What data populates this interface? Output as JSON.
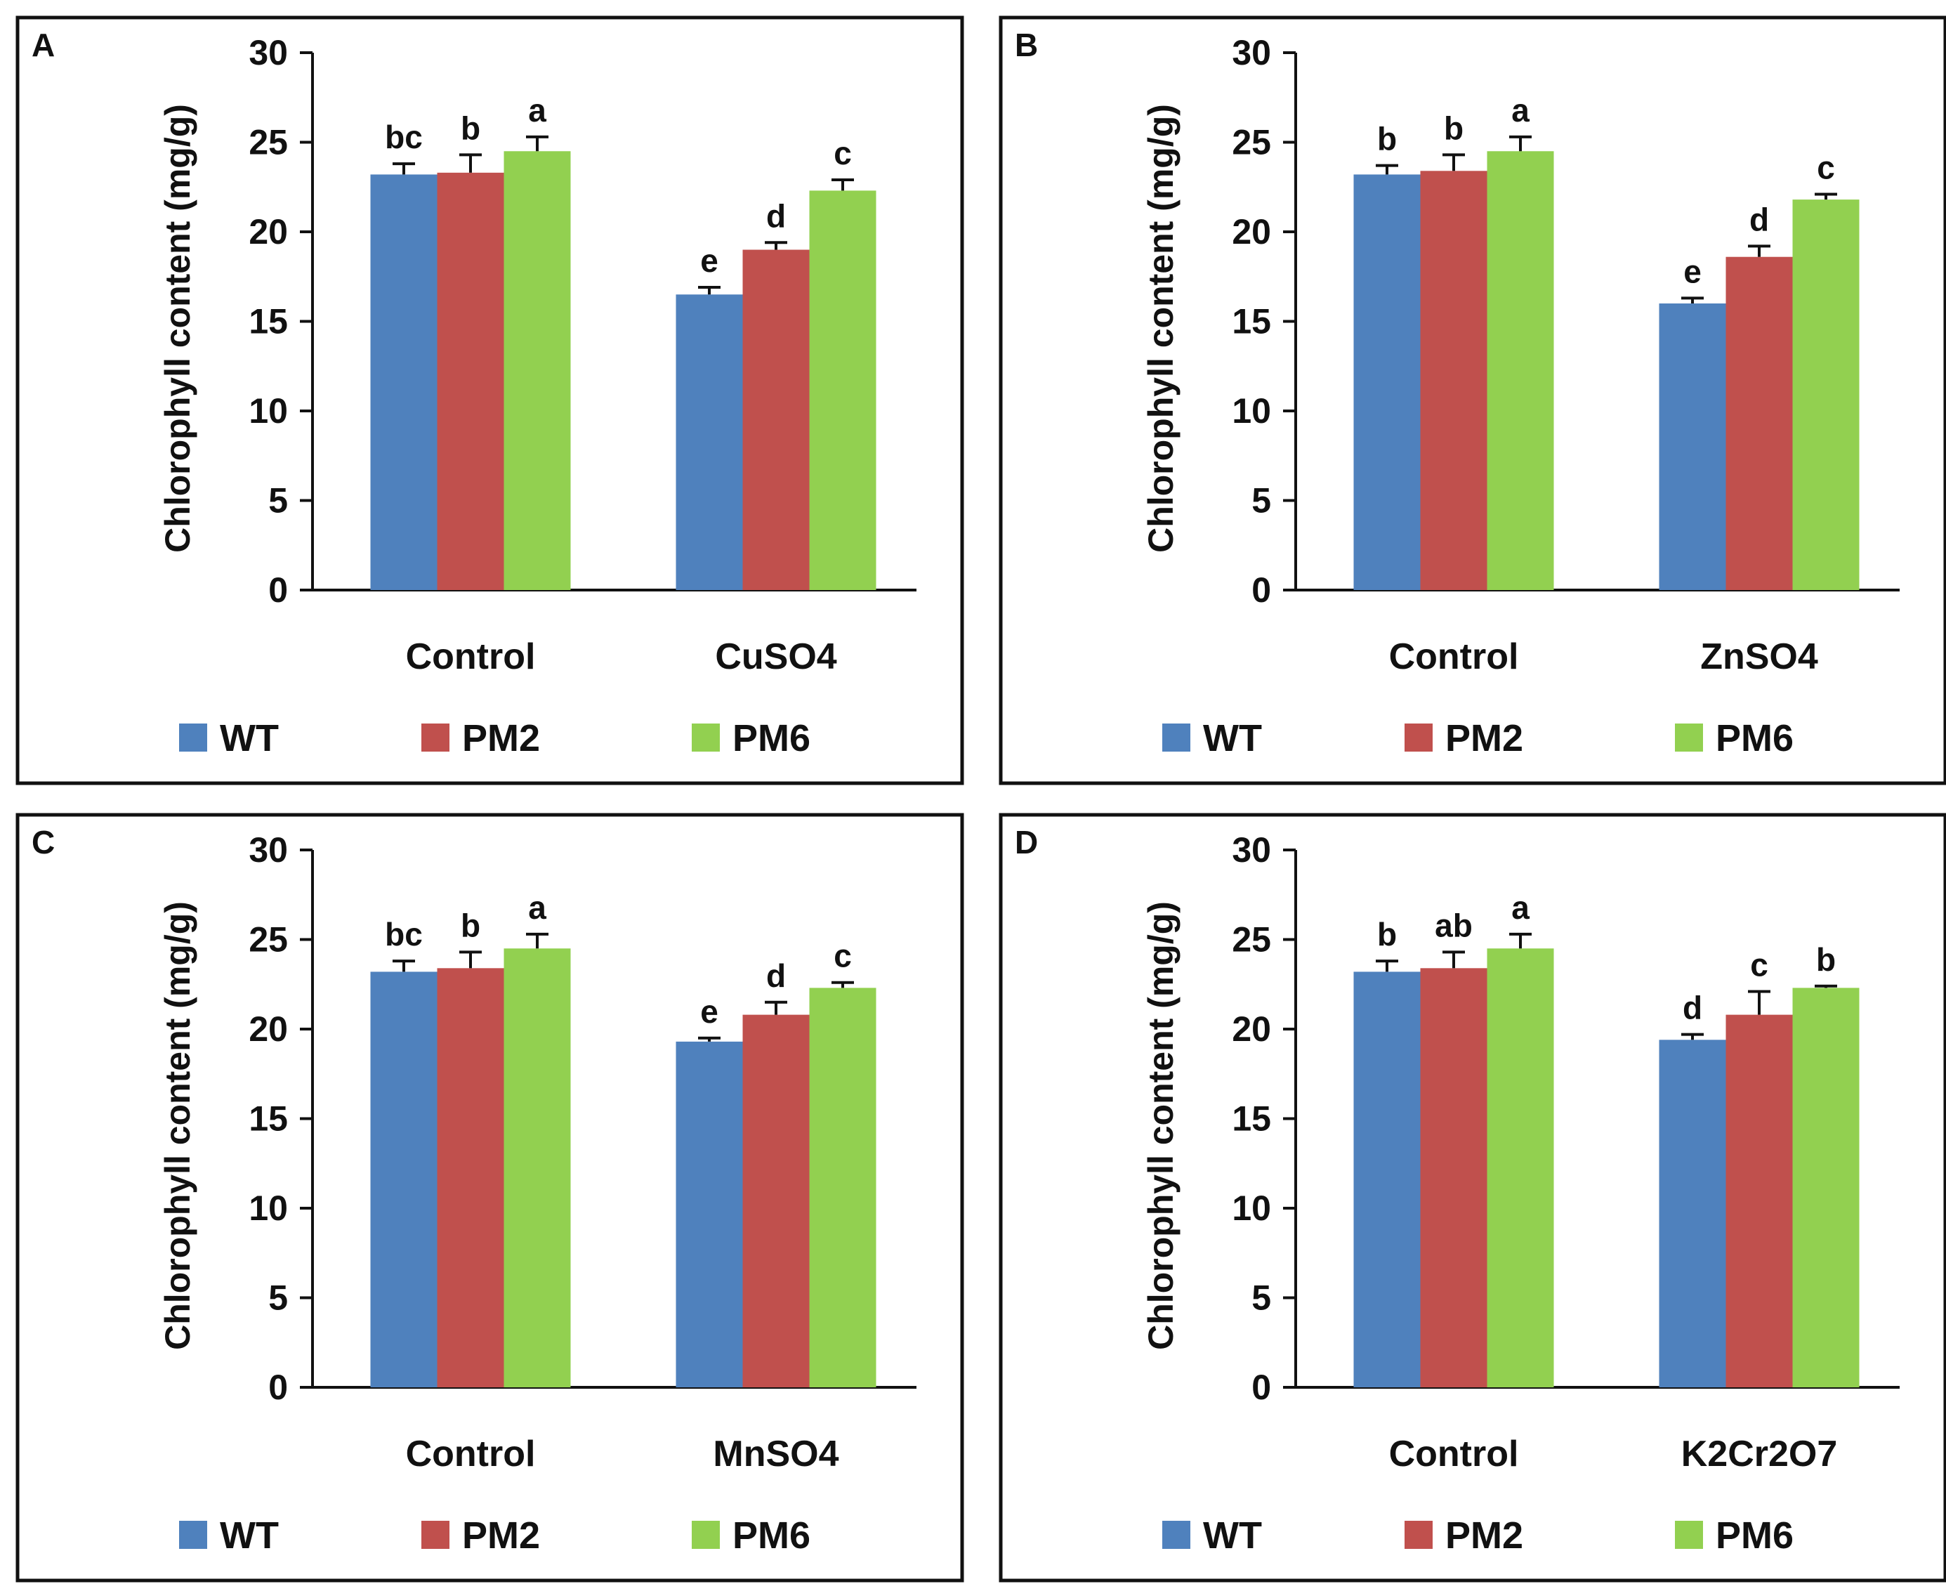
{
  "chart_data": [
    {
      "panel": "A",
      "type": "bar",
      "ylabel": "Chlorophyll content (mg/g)",
      "ylim": [
        0,
        30
      ],
      "yticks": [
        0,
        5,
        10,
        15,
        20,
        25,
        30
      ],
      "categories": [
        "Control",
        "CuSO4"
      ],
      "series": [
        {
          "name": "WT",
          "values": [
            23.2,
            16.5
          ],
          "errors": [
            0.6,
            0.4
          ],
          "labels": [
            "bc",
            "e"
          ]
        },
        {
          "name": "PM2",
          "values": [
            23.3,
            19.0
          ],
          "errors": [
            1.0,
            0.4
          ],
          "labels": [
            "b",
            "d"
          ]
        },
        {
          "name": "PM6",
          "values": [
            24.5,
            22.3
          ],
          "errors": [
            0.8,
            0.6
          ],
          "labels": [
            "a",
            "c"
          ]
        }
      ]
    },
    {
      "panel": "B",
      "type": "bar",
      "ylabel": "Chlorophyll content (mg/g)",
      "ylim": [
        0,
        30
      ],
      "yticks": [
        0,
        5,
        10,
        15,
        20,
        25,
        30
      ],
      "categories": [
        "Control",
        "ZnSO4"
      ],
      "series": [
        {
          "name": "WT",
          "values": [
            23.2,
            16.0
          ],
          "errors": [
            0.5,
            0.3
          ],
          "labels": [
            "b",
            "e"
          ]
        },
        {
          "name": "PM2",
          "values": [
            23.4,
            18.6
          ],
          "errors": [
            0.9,
            0.6
          ],
          "labels": [
            "b",
            "d"
          ]
        },
        {
          "name": "PM6",
          "values": [
            24.5,
            21.8
          ],
          "errors": [
            0.8,
            0.3
          ],
          "labels": [
            "a",
            "c"
          ]
        }
      ]
    },
    {
      "panel": "C",
      "type": "bar",
      "ylabel": "Chlorophyll content (mg/g)",
      "ylim": [
        0,
        30
      ],
      "yticks": [
        0,
        5,
        10,
        15,
        20,
        25,
        30
      ],
      "categories": [
        "Control",
        "MnSO4"
      ],
      "series": [
        {
          "name": "WT",
          "values": [
            23.2,
            19.3
          ],
          "errors": [
            0.6,
            0.2
          ],
          "labels": [
            "bc",
            "e"
          ]
        },
        {
          "name": "PM2",
          "values": [
            23.4,
            20.8
          ],
          "errors": [
            0.9,
            0.7
          ],
          "labels": [
            "b",
            "d"
          ]
        },
        {
          "name": "PM6",
          "values": [
            24.5,
            22.3
          ],
          "errors": [
            0.8,
            0.3
          ],
          "labels": [
            "a",
            "c"
          ]
        }
      ]
    },
    {
      "panel": "D",
      "type": "bar",
      "ylabel": "Chlorophyll content (mg/g)",
      "ylim": [
        0,
        30
      ],
      "yticks": [
        0,
        5,
        10,
        15,
        20,
        25,
        30
      ],
      "categories": [
        "Control",
        "K2Cr2O7"
      ],
      "series": [
        {
          "name": "WT",
          "values": [
            23.2,
            19.4
          ],
          "errors": [
            0.6,
            0.3
          ],
          "labels": [
            "b",
            "d"
          ]
        },
        {
          "name": "PM2",
          "values": [
            23.4,
            20.8
          ],
          "errors": [
            0.9,
            1.3
          ],
          "labels": [
            "ab",
            "c"
          ]
        },
        {
          "name": "PM6",
          "values": [
            24.5,
            22.3
          ],
          "errors": [
            0.8,
            0.1
          ],
          "labels": [
            "a",
            "b"
          ]
        }
      ]
    }
  ],
  "colors": {
    "WT": "#4f81bd",
    "PM2": "#c0504d",
    "PM6": "#92d050",
    "frame": "#111111",
    "axis": "#111111"
  }
}
